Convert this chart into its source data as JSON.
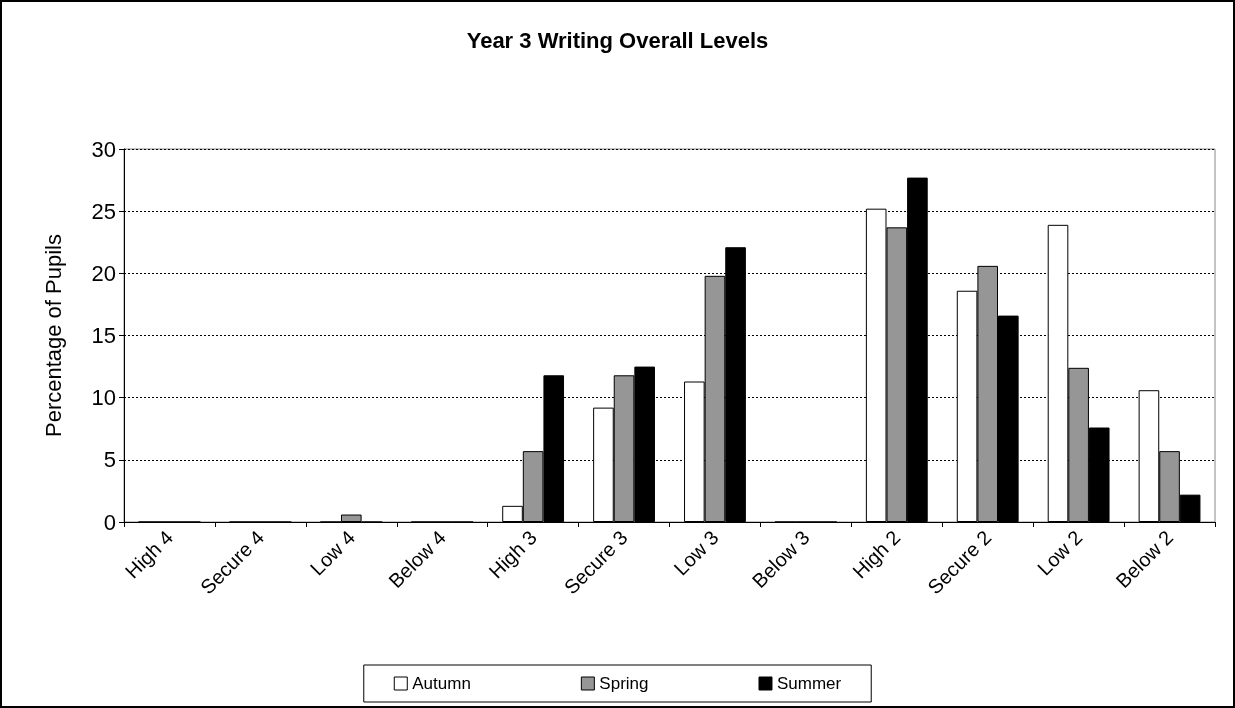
{
  "chart_data": {
    "type": "bar",
    "title": "Year 3 Writing Overall Levels",
    "ylabel": "Percentage of Pupils",
    "categories": [
      "High 4",
      "Secure 4",
      "Low 4",
      "Below 4",
      "High 3",
      "Secure 3",
      "Low 3",
      "Below 3",
      "High 2",
      "Secure 2",
      "Low 2",
      "Below 2"
    ],
    "series": [
      {
        "name": "Autumn",
        "color": "#ffffff",
        "values": [
          0,
          0,
          0,
          0,
          1.3,
          9.2,
          11.3,
          0,
          25.2,
          18.6,
          23.9,
          10.6
        ]
      },
      {
        "name": "Spring",
        "color": "#969696",
        "values": [
          0,
          0,
          0.6,
          0,
          5.7,
          11.8,
          19.8,
          0,
          23.7,
          20.6,
          12.4,
          5.7
        ]
      },
      {
        "name": "Summer",
        "color": "#000000",
        "values": [
          0,
          0,
          0,
          0,
          11.8,
          12.5,
          22.1,
          0,
          27.7,
          16.6,
          7.6,
          2.2
        ]
      }
    ],
    "ylim": [
      0,
      30
    ],
    "yticks": [
      0,
      5,
      10,
      15,
      20,
      25,
      30
    ],
    "grid": "y",
    "legend": "bottom"
  }
}
